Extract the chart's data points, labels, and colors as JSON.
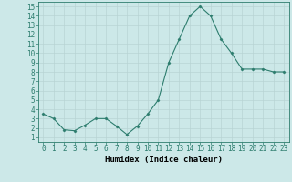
{
  "x": [
    0,
    1,
    2,
    3,
    4,
    5,
    6,
    7,
    8,
    9,
    10,
    11,
    12,
    13,
    14,
    15,
    16,
    17,
    18,
    19,
    20,
    21,
    22,
    23
  ],
  "y": [
    3.5,
    3.0,
    1.8,
    1.7,
    2.3,
    3.0,
    3.0,
    2.2,
    1.3,
    2.2,
    3.5,
    5.0,
    9.0,
    11.5,
    14.0,
    15.0,
    14.0,
    11.5,
    10.0,
    8.3,
    8.3,
    8.3,
    8.0,
    8.0
  ],
  "line_color": "#2d7d6e",
  "marker": "D",
  "marker_size": 1.5,
  "bg_color": "#cce8e8",
  "grid_color": "#b8d4d4",
  "xlabel": "Humidex (Indice chaleur)",
  "xlabel_fontsize": 6.5,
  "tick_fontsize": 5.5,
  "ylim": [
    1,
    15
  ],
  "xlim": [
    -0.5,
    23.5
  ],
  "yticks": [
    1,
    2,
    3,
    4,
    5,
    6,
    7,
    8,
    9,
    10,
    11,
    12,
    13,
    14,
    15
  ],
  "xticks": [
    0,
    1,
    2,
    3,
    4,
    5,
    6,
    7,
    8,
    9,
    10,
    11,
    12,
    13,
    14,
    15,
    16,
    17,
    18,
    19,
    20,
    21,
    22,
    23
  ]
}
